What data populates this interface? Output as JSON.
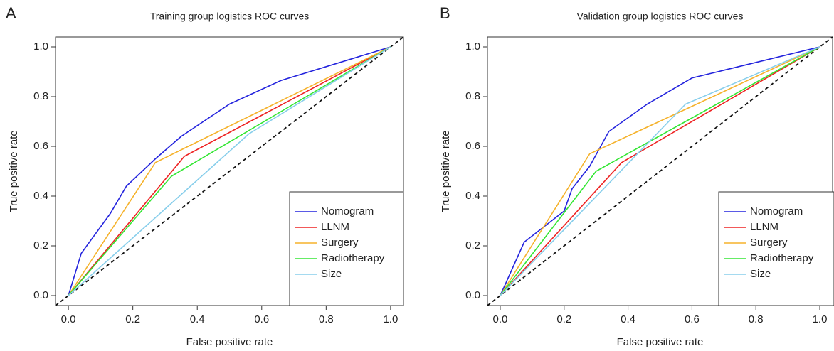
{
  "chart_data": [
    {
      "type": "line",
      "panel_label": "A",
      "title": "Training group logistics ROC curves",
      "x_label": "False positive rate",
      "y_label": "True positive rate",
      "xlim": [
        -0.04,
        1.04
      ],
      "ylim": [
        -0.04,
        1.04
      ],
      "xticks": [
        {
          "value": 0,
          "label": "0.0"
        },
        0.2,
        0.4,
        0.6,
        0.8,
        {
          "value": 1,
          "label": "1.0"
        }
      ],
      "yticks": [
        {
          "value": 0,
          "label": "0.0"
        },
        0.2,
        0.4,
        0.6,
        0.8,
        {
          "value": 1,
          "label": "1.0"
        }
      ],
      "legend": "bottom-right",
      "series": [
        {
          "name": "Nomogram",
          "color": "#2323dd",
          "x": [
            0,
            0.04,
            0.13,
            0.18,
            0.27,
            0.35,
            0.5,
            0.66,
            1
          ],
          "values": [
            0,
            0.17,
            0.33,
            0.44,
            0.55,
            0.64,
            0.77,
            0.865,
            1
          ]
        },
        {
          "name": "LLNM",
          "color": "#ee2222",
          "x": [
            0,
            0.36,
            1
          ],
          "values": [
            0,
            0.56,
            1
          ]
        },
        {
          "name": "Surgery",
          "color": "#f5b22b",
          "x": [
            0,
            0.27,
            1
          ],
          "values": [
            0,
            0.535,
            1
          ]
        },
        {
          "name": "Radiotherapy",
          "color": "#33e633",
          "x": [
            0,
            0.32,
            1
          ],
          "values": [
            0,
            0.48,
            1
          ]
        },
        {
          "name": "Size",
          "color": "#87ceeb",
          "x": [
            0,
            0.56,
            1
          ],
          "values": [
            0,
            0.65,
            1
          ]
        }
      ]
    },
    {
      "type": "line",
      "panel_label": "B",
      "title": "Validation group logistics ROC curves",
      "x_label": "False positive rate",
      "y_label": "True positive rate",
      "xlim": [
        -0.04,
        1.04
      ],
      "ylim": [
        -0.04,
        1.04
      ],
      "xticks": [
        {
          "value": 0,
          "label": "0.0"
        },
        0.2,
        0.4,
        0.6,
        0.8,
        {
          "value": 1,
          "label": "1.0"
        }
      ],
      "yticks": [
        {
          "value": 0,
          "label": "0.0"
        },
        0.2,
        0.4,
        0.6,
        0.8,
        {
          "value": 1,
          "label": "1.0"
        }
      ],
      "legend": "bottom-right",
      "series": [
        {
          "name": "Nomogram",
          "color": "#2323dd",
          "x": [
            0,
            0.075,
            0.2,
            0.225,
            0.28,
            0.34,
            0.46,
            0.6,
            1
          ],
          "values": [
            0,
            0.215,
            0.34,
            0.43,
            0.52,
            0.66,
            0.77,
            0.875,
            1
          ]
        },
        {
          "name": "LLNM",
          "color": "#ee2222",
          "x": [
            0,
            0.38,
            1
          ],
          "values": [
            0,
            0.535,
            1
          ]
        },
        {
          "name": "Surgery",
          "color": "#f5b22b",
          "x": [
            0,
            0.28,
            1
          ],
          "values": [
            0,
            0.57,
            1
          ]
        },
        {
          "name": "Radiotherapy",
          "color": "#33e633",
          "x": [
            0,
            0.3,
            1
          ],
          "values": [
            0,
            0.5,
            1
          ]
        },
        {
          "name": "Size",
          "color": "#87ceeb",
          "x": [
            0,
            0.58,
            1
          ],
          "values": [
            0,
            0.77,
            1
          ]
        }
      ]
    }
  ]
}
